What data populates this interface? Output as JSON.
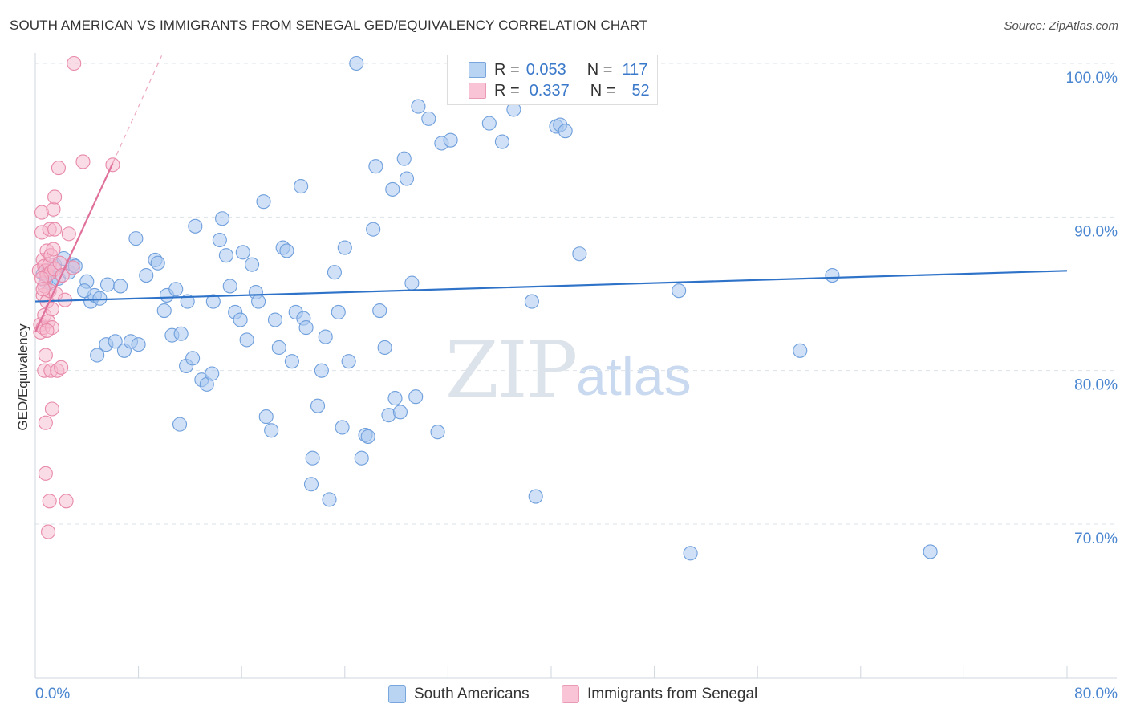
{
  "header": {
    "title": "SOUTH AMERICAN VS IMMIGRANTS FROM SENEGAL GED/EQUIVALENCY CORRELATION CHART",
    "source": "Source: ZipAtlas.com"
  },
  "watermark": {
    "zip": "ZIP",
    "atlas": "atlas"
  },
  "legend_top": {
    "rows": [
      {
        "r_label": "R =",
        "r_value": "0.053",
        "n_label": "N =",
        "n_value": "117"
      },
      {
        "r_label": "R =",
        "r_value": "0.337",
        "n_label": "N =",
        "n_value": "52"
      }
    ]
  },
  "colors": {
    "blue_fill": "#a9c8f0",
    "blue_stroke": "#6f9fdc",
    "blue_line": "#2f73c9",
    "pink_fill": "#f6b9cd",
    "pink_stroke": "#e889a8",
    "pink_line": "#e0719a",
    "axis_text": "#4a86d0",
    "grid": "#dde3ea"
  },
  "chart_data": {
    "type": "scatter",
    "title": "SOUTH AMERICAN VS IMMIGRANTS FROM SENEGAL GED/EQUIVALENCY CORRELATION CHART",
    "xlabel": "",
    "ylabel": "GED/Equivalency",
    "xlim": [
      0,
      80
    ],
    "ylim": [
      60,
      102
    ],
    "x_tick_labels": [
      "0.0%",
      "80.0%"
    ],
    "y_ticks": [
      70,
      80,
      90,
      100
    ],
    "y_tick_labels": [
      "70.0%",
      "80.0%",
      "90.0%",
      "100.0%"
    ],
    "grid": "horizontal dashed",
    "legend_position": "bottom",
    "series": [
      {
        "name": "South Americans",
        "trend": {
          "x": [
            0,
            80
          ],
          "y": [
            84.5,
            86.5
          ]
        },
        "points": [
          [
            0.6,
            86.3
          ],
          [
            0.8,
            85.8
          ],
          [
            1.0,
            86.5
          ],
          [
            1.2,
            85.7
          ],
          [
            1.5,
            86.9
          ],
          [
            1.8,
            86.0
          ],
          [
            2.2,
            87.3
          ],
          [
            2.6,
            86.4
          ],
          [
            2.9,
            86.9
          ],
          [
            3.1,
            86.8
          ],
          [
            4.0,
            85.8
          ],
          [
            4.3,
            84.5
          ],
          [
            4.6,
            84.9
          ],
          [
            3.8,
            85.2
          ],
          [
            5.0,
            84.7
          ],
          [
            5.6,
            85.6
          ],
          [
            6.6,
            85.5
          ],
          [
            5.5,
            81.7
          ],
          [
            6.2,
            81.9
          ],
          [
            6.9,
            81.3
          ],
          [
            7.4,
            81.9
          ],
          [
            8.0,
            81.7
          ],
          [
            4.8,
            81.0
          ],
          [
            7.8,
            88.6
          ],
          [
            9.3,
            87.2
          ],
          [
            9.5,
            87.0
          ],
          [
            8.6,
            86.2
          ],
          [
            10.0,
            83.9
          ],
          [
            10.2,
            84.9
          ],
          [
            10.6,
            82.3
          ],
          [
            10.9,
            85.3
          ],
          [
            11.3,
            82.4
          ],
          [
            11.8,
            84.5
          ],
          [
            11.2,
            76.5
          ],
          [
            11.7,
            80.3
          ],
          [
            12.2,
            80.8
          ],
          [
            12.4,
            89.4
          ],
          [
            12.9,
            79.4
          ],
          [
            13.3,
            79.1
          ],
          [
            13.7,
            79.8
          ],
          [
            13.8,
            84.5
          ],
          [
            14.3,
            88.5
          ],
          [
            14.5,
            89.9
          ],
          [
            14.8,
            87.5
          ],
          [
            15.1,
            85.5
          ],
          [
            15.5,
            83.8
          ],
          [
            15.9,
            83.3
          ],
          [
            16.1,
            87.7
          ],
          [
            16.4,
            82.0
          ],
          [
            16.8,
            86.9
          ],
          [
            17.1,
            85.1
          ],
          [
            17.3,
            84.5
          ],
          [
            17.7,
            91.0
          ],
          [
            17.9,
            77.0
          ],
          [
            18.3,
            76.1
          ],
          [
            18.6,
            83.3
          ],
          [
            18.9,
            81.5
          ],
          [
            19.2,
            88.0
          ],
          [
            19.5,
            87.8
          ],
          [
            19.9,
            80.6
          ],
          [
            20.2,
            83.8
          ],
          [
            20.6,
            92.0
          ],
          [
            20.8,
            83.4
          ],
          [
            21.0,
            82.8
          ],
          [
            21.5,
            74.3
          ],
          [
            21.4,
            72.6
          ],
          [
            21.9,
            77.7
          ],
          [
            22.2,
            80.0
          ],
          [
            22.5,
            82.2
          ],
          [
            22.8,
            71.6
          ],
          [
            23.2,
            86.4
          ],
          [
            23.5,
            83.8
          ],
          [
            23.8,
            76.3
          ],
          [
            24.0,
            88.0
          ],
          [
            24.3,
            80.6
          ],
          [
            24.9,
            100.0
          ],
          [
            25.3,
            74.3
          ],
          [
            25.6,
            75.8
          ],
          [
            25.8,
            75.7
          ],
          [
            26.2,
            89.2
          ],
          [
            26.4,
            93.3
          ],
          [
            26.7,
            83.9
          ],
          [
            27.1,
            81.5
          ],
          [
            27.4,
            77.1
          ],
          [
            27.7,
            91.8
          ],
          [
            27.9,
            78.2
          ],
          [
            28.3,
            77.3
          ],
          [
            28.6,
            93.8
          ],
          [
            28.8,
            92.5
          ],
          [
            29.2,
            85.7
          ],
          [
            29.5,
            78.3
          ],
          [
            29.7,
            97.2
          ],
          [
            30.5,
            96.4
          ],
          [
            31.2,
            76.0
          ],
          [
            31.5,
            94.8
          ],
          [
            32.2,
            95.0
          ],
          [
            32.5,
            100.0
          ],
          [
            35.2,
            96.1
          ],
          [
            36.2,
            94.9
          ],
          [
            37.1,
            97.0
          ],
          [
            38.3,
            100.0
          ],
          [
            38.5,
            84.5
          ],
          [
            38.8,
            71.8
          ],
          [
            40.4,
            95.9
          ],
          [
            40.7,
            96.0
          ],
          [
            41.1,
            95.6
          ],
          [
            42.2,
            87.6
          ],
          [
            49.9,
            85.2
          ],
          [
            50.8,
            68.1
          ],
          [
            59.3,
            81.3
          ],
          [
            61.8,
            86.2
          ],
          [
            69.4,
            68.2
          ]
        ]
      },
      {
        "name": "Immigrants from Senegal",
        "trend": {
          "x": [
            0,
            6
          ],
          "y": [
            82.5,
            93.5
          ]
        },
        "trend_extension": {
          "x": [
            6,
            9.8
          ],
          "y": [
            93.5,
            100.5
          ]
        },
        "points": [
          [
            0.3,
            86.5
          ],
          [
            0.4,
            83.0
          ],
          [
            0.4,
            82.5
          ],
          [
            0.5,
            90.3
          ],
          [
            0.5,
            89.0
          ],
          [
            0.6,
            87.2
          ],
          [
            0.6,
            84.9
          ],
          [
            0.6,
            82.8
          ],
          [
            0.7,
            86.8
          ],
          [
            0.7,
            85.5
          ],
          [
            0.7,
            83.6
          ],
          [
            0.7,
            80.0
          ],
          [
            0.8,
            86.5
          ],
          [
            0.8,
            81.0
          ],
          [
            0.8,
            76.6
          ],
          [
            0.8,
            73.3
          ],
          [
            0.9,
            87.8
          ],
          [
            0.9,
            86.2
          ],
          [
            0.9,
            84.5
          ],
          [
            1.0,
            83.2
          ],
          [
            1.0,
            69.5
          ],
          [
            1.1,
            89.2
          ],
          [
            1.1,
            86.9
          ],
          [
            1.1,
            85.2
          ],
          [
            1.1,
            71.5
          ],
          [
            1.2,
            87.5
          ],
          [
            1.2,
            86.4
          ],
          [
            1.2,
            80.0
          ],
          [
            1.3,
            82.8
          ],
          [
            1.3,
            77.5
          ],
          [
            1.3,
            84.0
          ],
          [
            1.4,
            90.5
          ],
          [
            1.5,
            89.2
          ],
          [
            1.5,
            86.6
          ],
          [
            1.5,
            91.3
          ],
          [
            1.6,
            85.0
          ],
          [
            1.7,
            80.0
          ],
          [
            1.8,
            93.2
          ],
          [
            1.9,
            87.0
          ],
          [
            2.0,
            80.2
          ],
          [
            2.1,
            86.2
          ],
          [
            2.3,
            84.6
          ],
          [
            2.4,
            71.5
          ],
          [
            2.6,
            88.9
          ],
          [
            2.9,
            86.7
          ],
          [
            3.0,
            100.0
          ],
          [
            3.7,
            93.6
          ],
          [
            6.0,
            93.4
          ],
          [
            0.5,
            86.0
          ],
          [
            0.6,
            85.3
          ],
          [
            0.9,
            82.6
          ],
          [
            1.4,
            87.9
          ]
        ]
      }
    ]
  },
  "legend_bottom": {
    "items": [
      {
        "label": "South Americans"
      },
      {
        "label": "Immigrants from Senegal"
      }
    ]
  },
  "axis": {
    "ylabel": "GED/Equivalency",
    "x_min_label": "0.0%",
    "x_max_label": "80.0%",
    "y_labels": [
      "100.0%",
      "90.0%",
      "80.0%",
      "70.0%"
    ]
  }
}
